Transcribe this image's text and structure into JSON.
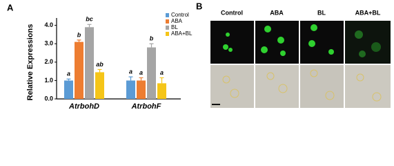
{
  "chart_data": {
    "type": "bar",
    "panel_label": "A",
    "y_label": "Relative Expressions",
    "categories": [
      "AtrbohD",
      "AtrbohF"
    ],
    "series": [
      {
        "name": "Control",
        "color": "#5b9bd5",
        "values": [
          1.0,
          1.0
        ],
        "errors": [
          0.08,
          0.2
        ],
        "letters": [
          "a",
          "a"
        ]
      },
      {
        "name": "ABA",
        "color": "#ed7d31",
        "values": [
          3.1,
          1.0
        ],
        "errors": [
          0.1,
          0.15
        ],
        "letters": [
          "b",
          "a"
        ]
      },
      {
        "name": "BL",
        "color": "#a5a5a5",
        "values": [
          3.9,
          2.8
        ],
        "errors": [
          0.15,
          0.2
        ],
        "letters": [
          "bc",
          "b"
        ]
      },
      {
        "name": "ABA+BL",
        "color": "#f5c518",
        "values": [
          1.45,
          0.85
        ],
        "errors": [
          0.15,
          0.3
        ],
        "letters": [
          "ab",
          "a"
        ]
      }
    ],
    "ylim": [
      0,
      4.4
    ],
    "yticks": [
      {
        "value": 0,
        "label": "0.0"
      },
      {
        "value": 1,
        "label": "1.0"
      },
      {
        "value": 2,
        "label": "2.0"
      },
      {
        "value": 3,
        "label": "3.0"
      },
      {
        "value": 4,
        "label": "4.0"
      }
    ],
    "legend": "upper right"
  },
  "images": {
    "panel_label": "B",
    "columns": [
      "Control",
      "ABA",
      "BL",
      "ABA+BL"
    ]
  }
}
